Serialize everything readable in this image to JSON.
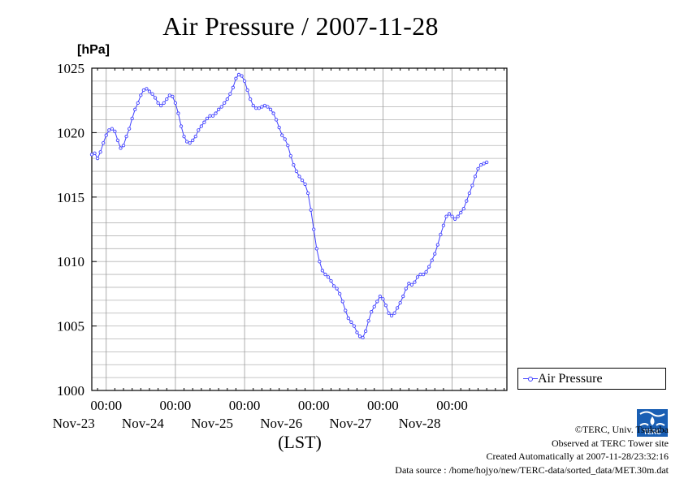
{
  "chart_data": {
    "type": "line",
    "title": "Air Pressure / 2007-11-28",
    "unit_label": "[hPa]",
    "xlabel": "(LST)",
    "ylabel": "",
    "ylim": [
      1000,
      1025
    ],
    "yticks": [
      1000,
      1005,
      1010,
      1015,
      1020,
      1025
    ],
    "xlim": [
      0,
      144
    ],
    "x_units": "hours since 2007-11-22 19:00 LST",
    "xticks": [
      {
        "x": 5,
        "time": "00:00",
        "date": "Nov-23"
      },
      {
        "x": 29,
        "time": "00:00",
        "date": "Nov-24"
      },
      {
        "x": 53,
        "time": "00:00",
        "date": "Nov-25"
      },
      {
        "x": 77,
        "time": "00:00",
        "date": "Nov-26"
      },
      {
        "x": 101,
        "time": "00:00",
        "date": "Nov-27"
      },
      {
        "x": 125,
        "time": "00:00",
        "date": "Nov-28"
      }
    ],
    "grid": true,
    "legend_position": "right",
    "series": [
      {
        "name": "Air Pressure",
        "color": "#4040ff",
        "points": [
          [
            0,
            1018.3
          ],
          [
            1,
            1018.4
          ],
          [
            2,
            1018.0
          ],
          [
            3,
            1018.5
          ],
          [
            4,
            1019.2
          ],
          [
            5,
            1019.8
          ],
          [
            6,
            1020.2
          ],
          [
            7,
            1020.3
          ],
          [
            8,
            1020.1
          ],
          [
            9,
            1019.4
          ],
          [
            10,
            1018.8
          ],
          [
            11,
            1019.0
          ],
          [
            12,
            1019.7
          ],
          [
            13,
            1020.3
          ],
          [
            14,
            1021.1
          ],
          [
            15,
            1021.8
          ],
          [
            16,
            1022.3
          ],
          [
            17,
            1022.9
          ],
          [
            18,
            1023.3
          ],
          [
            19,
            1023.4
          ],
          [
            20,
            1023.2
          ],
          [
            21,
            1023.0
          ],
          [
            22,
            1022.7
          ],
          [
            23,
            1022.3
          ],
          [
            24,
            1022.1
          ],
          [
            25,
            1022.3
          ],
          [
            26,
            1022.6
          ],
          [
            27,
            1022.9
          ],
          [
            28,
            1022.8
          ],
          [
            29,
            1022.3
          ],
          [
            30,
            1021.5
          ],
          [
            31,
            1020.5
          ],
          [
            32,
            1019.7
          ],
          [
            33,
            1019.3
          ],
          [
            34,
            1019.2
          ],
          [
            35,
            1019.4
          ],
          [
            36,
            1019.7
          ],
          [
            37,
            1020.2
          ],
          [
            38,
            1020.5
          ],
          [
            39,
            1020.8
          ],
          [
            40,
            1021.1
          ],
          [
            41,
            1021.3
          ],
          [
            42,
            1021.3
          ],
          [
            43,
            1021.5
          ],
          [
            44,
            1021.8
          ],
          [
            45,
            1022.0
          ],
          [
            46,
            1022.3
          ],
          [
            47,
            1022.6
          ],
          [
            48,
            1023.0
          ],
          [
            49,
            1023.5
          ],
          [
            50,
            1024.2
          ],
          [
            51,
            1024.5
          ],
          [
            52,
            1024.4
          ],
          [
            53,
            1024.0
          ],
          [
            54,
            1023.3
          ],
          [
            55,
            1022.6
          ],
          [
            56,
            1022.1
          ],
          [
            57,
            1021.9
          ],
          [
            58,
            1021.9
          ],
          [
            59,
            1022.0
          ],
          [
            60,
            1022.1
          ],
          [
            61,
            1022.0
          ],
          [
            62,
            1021.8
          ],
          [
            63,
            1021.5
          ],
          [
            64,
            1021.0
          ],
          [
            65,
            1020.4
          ],
          [
            66,
            1019.8
          ],
          [
            67,
            1019.5
          ],
          [
            68,
            1019.0
          ],
          [
            69,
            1018.2
          ],
          [
            70,
            1017.5
          ],
          [
            71,
            1017.0
          ],
          [
            72,
            1016.6
          ],
          [
            73,
            1016.3
          ],
          [
            74,
            1016.0
          ],
          [
            75,
            1015.3
          ],
          [
            76,
            1014.0
          ],
          [
            77,
            1012.5
          ],
          [
            78,
            1011.0
          ],
          [
            79,
            1010.0
          ],
          [
            80,
            1009.3
          ],
          [
            81,
            1009.0
          ],
          [
            82,
            1008.8
          ],
          [
            83,
            1008.5
          ],
          [
            84,
            1008.1
          ],
          [
            85,
            1007.9
          ],
          [
            86,
            1007.5
          ],
          [
            87,
            1006.9
          ],
          [
            88,
            1006.2
          ],
          [
            89,
            1005.6
          ],
          [
            90,
            1005.3
          ],
          [
            91,
            1005.0
          ],
          [
            92,
            1004.5
          ],
          [
            93,
            1004.2
          ],
          [
            94,
            1004.1
          ],
          [
            95,
            1004.6
          ],
          [
            96,
            1005.4
          ],
          [
            97,
            1006.1
          ],
          [
            98,
            1006.5
          ],
          [
            99,
            1006.9
          ],
          [
            100,
            1007.3
          ],
          [
            101,
            1007.1
          ],
          [
            102,
            1006.6
          ],
          [
            103,
            1006.0
          ],
          [
            104,
            1005.8
          ],
          [
            105,
            1006.0
          ],
          [
            106,
            1006.4
          ],
          [
            107,
            1006.8
          ],
          [
            108,
            1007.3
          ],
          [
            109,
            1007.9
          ],
          [
            110,
            1008.3
          ],
          [
            111,
            1008.2
          ],
          [
            112,
            1008.4
          ],
          [
            113,
            1008.8
          ],
          [
            114,
            1009.0
          ],
          [
            115,
            1009.0
          ],
          [
            116,
            1009.2
          ],
          [
            117,
            1009.6
          ],
          [
            118,
            1010.1
          ],
          [
            119,
            1010.6
          ],
          [
            120,
            1011.3
          ],
          [
            121,
            1012.1
          ],
          [
            122,
            1012.8
          ],
          [
            123,
            1013.5
          ],
          [
            124,
            1013.7
          ],
          [
            125,
            1013.5
          ],
          [
            126,
            1013.3
          ],
          [
            127,
            1013.5
          ],
          [
            128,
            1013.8
          ],
          [
            129,
            1014.1
          ],
          [
            130,
            1014.7
          ],
          [
            131,
            1015.3
          ],
          [
            132,
            1015.9
          ],
          [
            133,
            1016.6
          ],
          [
            134,
            1017.2
          ],
          [
            135,
            1017.5
          ],
          [
            136,
            1017.6
          ],
          [
            137,
            1017.7
          ]
        ]
      }
    ]
  },
  "legend": {
    "label": "Air Pressure"
  },
  "credits": {
    "line1": "©TERC, Univ. Tsukuba",
    "line2": "Observed at TERC Tower site",
    "line3": "Created Automatically at 2007-11-28/23:32:16",
    "line4": "Data source : /home/hojyo/new/TERC-data/sorted_data/MET.30m.dat"
  },
  "logo": {
    "text": "TERC",
    "color": "#1a5fb4"
  }
}
